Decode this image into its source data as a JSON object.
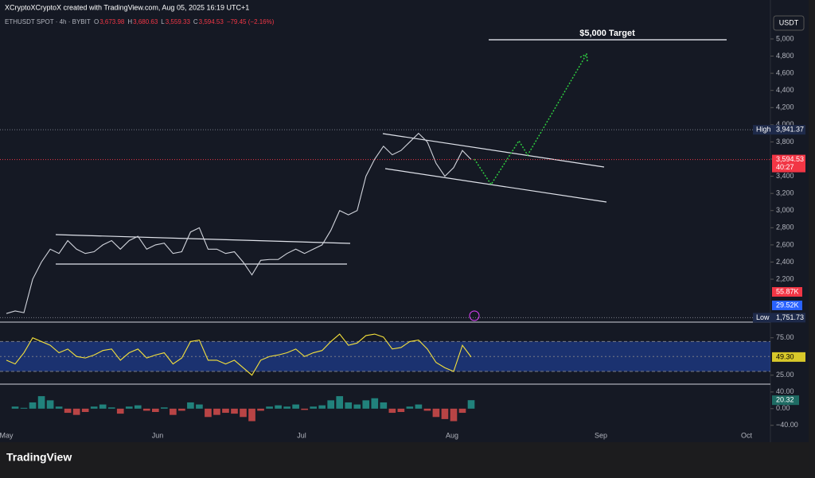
{
  "header": {
    "credit": "XCryptoXCryptoX created with TradingView.com, Aug 05, 2025 16:19 UTC+1",
    "symbol": "ETHUSDT SPOT · 4h · BYBIT",
    "ohlc": [
      {
        "name": "O",
        "value": "3,673.98"
      },
      {
        "name": "H",
        "value": "3,680.63"
      },
      {
        "name": "L",
        "value": "3,559.33"
      },
      {
        "name": "C",
        "value": "3,594.53"
      }
    ],
    "change": "−79.45 (−2.16%)",
    "currency": "USDT",
    "target": "$5,000 Target",
    "countdown": "40:27",
    "volume_labels": [
      {
        "label": "55.87K",
        "color": "#f23645"
      },
      {
        "label": "29.52K",
        "color": "#2962ff"
      }
    ],
    "brand": "TradingView"
  },
  "chart_data": [
    {
      "type": "line",
      "color": "#d1d4dc",
      "values": [
        1800,
        1830,
        1810,
        2200,
        2400,
        2550,
        2500,
        2650,
        2550,
        2500,
        2520,
        2600,
        2650,
        2550,
        2650,
        2700,
        2550,
        2600,
        2620,
        2500,
        2520,
        2750,
        2800,
        2550,
        2550,
        2500,
        2520,
        2400,
        2250,
        2420,
        2430,
        2430,
        2500,
        2550,
        2500,
        2550,
        2600,
        2770,
        3000,
        2950,
        3000,
        3400,
        3600,
        3750,
        3650,
        3700,
        3800,
        3900,
        3800,
        3550,
        3400,
        3500,
        3700,
        3594.53
      ],
      "value_labels": [
        null,
        null,
        null,
        null,
        null,
        null,
        null,
        null,
        null,
        null,
        null,
        null,
        null,
        null,
        null,
        null,
        null,
        null,
        null,
        null,
        null,
        null,
        null,
        null,
        null,
        null,
        null,
        null,
        null,
        null,
        null,
        null,
        null,
        null,
        null,
        null,
        null,
        null,
        null,
        null,
        null,
        null,
        null,
        null,
        null,
        null,
        null,
        null,
        null,
        null,
        null,
        null,
        null,
        "3,594.53"
      ],
      "ylim": [
        1700,
        5300
      ],
      "yticks": [
        {
          "value": 2200,
          "label": "2,200"
        },
        {
          "value": 2400,
          "label": "2,400"
        },
        {
          "value": 2600,
          "label": "2,600"
        },
        {
          "value": 2800,
          "label": "2,800"
        },
        {
          "value": 3000,
          "label": "3,000"
        },
        {
          "value": 3200,
          "label": "3,200"
        },
        {
          "value": 3400,
          "label": "3,400"
        },
        {
          "value": 3600,
          "label": "3,600"
        },
        {
          "value": 3800,
          "label": "3,800"
        },
        {
          "value": 4000,
          "label": "4,000"
        },
        {
          "value": 4200,
          "label": "4,200"
        },
        {
          "value": 4400,
          "label": "4,400"
        },
        {
          "value": 4600,
          "label": "4,600"
        },
        {
          "value": 4800,
          "label": "4,800"
        },
        {
          "value": 5000,
          "label": "5,000"
        }
      ],
      "xticks": [
        "May",
        "Jun",
        "Jul",
        "Aug",
        "Sep",
        "Oct"
      ],
      "markers": [
        {
          "name": "High",
          "value": 3941.37,
          "label": "3,941.37"
        },
        {
          "name": "Low",
          "value": 1751.73,
          "label": "1,751.73"
        }
      ]
    },
    {
      "type": "line",
      "color": "#f5e13b",
      "values": [
        45,
        40,
        55,
        75,
        70,
        65,
        55,
        60,
        50,
        48,
        52,
        58,
        60,
        45,
        55,
        60,
        48,
        52,
        55,
        40,
        48,
        70,
        72,
        45,
        45,
        40,
        45,
        35,
        25,
        45,
        50,
        52,
        55,
        60,
        50,
        55,
        58,
        70,
        80,
        65,
        68,
        78,
        80,
        76,
        60,
        62,
        70,
        72,
        60,
        42,
        35,
        30,
        65,
        49.3
      ],
      "value_labels": [
        null,
        null,
        null,
        null,
        null,
        null,
        null,
        null,
        null,
        null,
        null,
        null,
        null,
        null,
        null,
        null,
        null,
        null,
        null,
        null,
        null,
        null,
        null,
        null,
        null,
        null,
        null,
        null,
        null,
        null,
        null,
        null,
        null,
        null,
        null,
        null,
        null,
        null,
        null,
        null,
        null,
        null,
        null,
        null,
        null,
        null,
        null,
        null,
        null,
        null,
        null,
        null,
        null,
        "49.30"
      ],
      "ylim": [
        13,
        96
      ],
      "band": [
        30,
        70
      ],
      "midline": 50,
      "yticks": [
        {
          "value": 75,
          "label": "75.00"
        },
        {
          "value": 25,
          "label": "25.00"
        }
      ]
    },
    {
      "type": "bar",
      "color": "#26a69a",
      "negative_color": "#ef5350",
      "values": [
        0,
        5,
        2,
        15,
        30,
        20,
        5,
        -10,
        -15,
        -8,
        5,
        10,
        3,
        -12,
        5,
        8,
        -5,
        -8,
        3,
        -15,
        -5,
        15,
        10,
        -20,
        -15,
        -10,
        -12,
        -20,
        -30,
        -5,
        5,
        8,
        5,
        10,
        -3,
        5,
        8,
        20,
        30,
        15,
        10,
        20,
        25,
        15,
        -10,
        -8,
        5,
        10,
        -5,
        -20,
        -25,
        -30,
        -10,
        20.32
      ],
      "ylim": [
        -50,
        55
      ],
      "yticks": [
        {
          "value": 40,
          "label": "40.00"
        },
        {
          "value": 0,
          "label": "0.00"
        },
        {
          "value": -40,
          "label": "−40.00"
        }
      ]
    }
  ]
}
